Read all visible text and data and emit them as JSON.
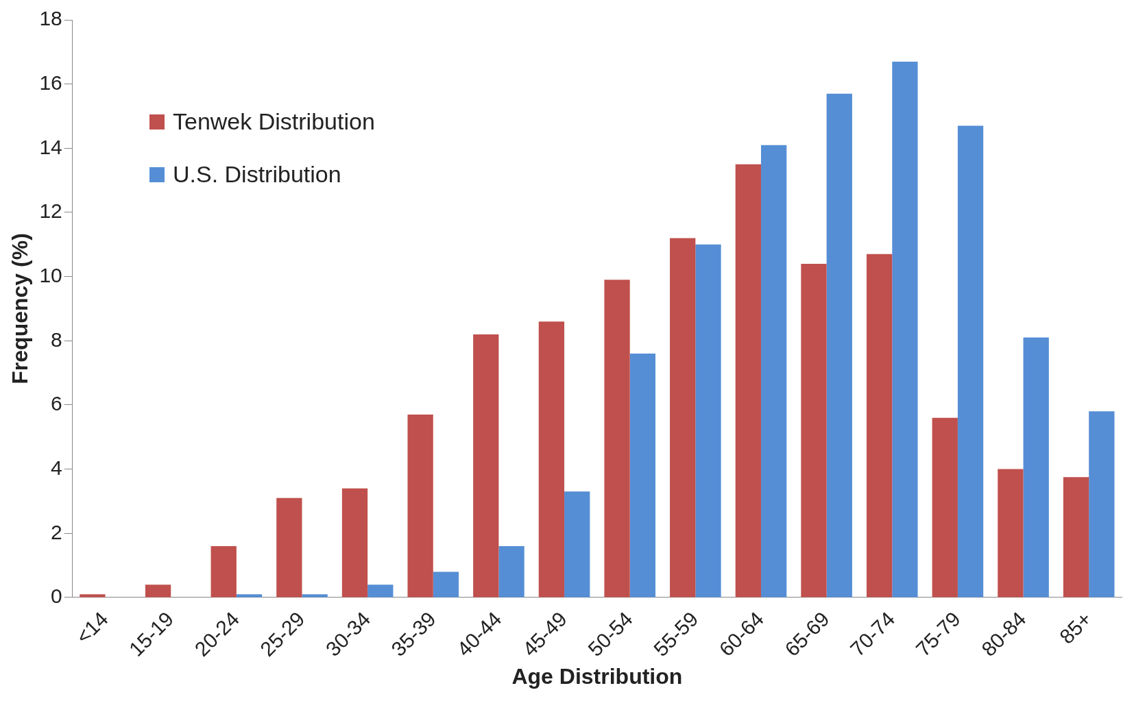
{
  "chart_data": {
    "type": "bar",
    "xlabel": "Age Distribution",
    "ylabel": "Frequency (%)",
    "categories": [
      "<14",
      "15-19",
      "20-24",
      "25-29",
      "30-34",
      "35-39",
      "40-44",
      "45-49",
      "50-54",
      "55-59",
      "60-64",
      "65-69",
      "70-74",
      "75-79",
      "80-84",
      "85+"
    ],
    "series": [
      {
        "name": "Tenwek Distribution",
        "color": "#c0504d",
        "values": [
          0.1,
          0.4,
          1.6,
          3.1,
          3.4,
          5.7,
          8.2,
          8.6,
          9.9,
          11.2,
          13.5,
          10.4,
          10.7,
          5.6,
          4.0,
          3.75
        ]
      },
      {
        "name": "U.S. Distribution",
        "color": "#558ed5",
        "values": [
          0,
          0,
          0.1,
          0.1,
          0.4,
          0.8,
          1.6,
          3.3,
          7.6,
          11.0,
          14.1,
          15.7,
          16.7,
          14.7,
          8.1,
          5.8
        ]
      }
    ],
    "ylim": [
      0,
      18
    ],
    "yticks": [
      0,
      2,
      4,
      6,
      8,
      10,
      12,
      14,
      16,
      18
    ],
    "grid": false,
    "legend": "top left"
  }
}
